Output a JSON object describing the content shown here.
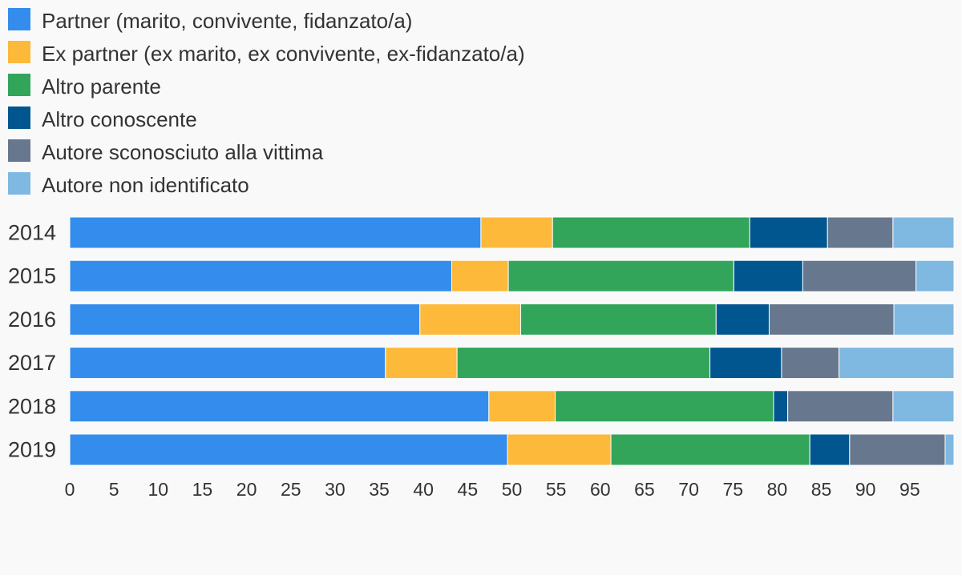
{
  "chart_data": {
    "type": "bar",
    "orientation": "horizontal",
    "stacked": true,
    "categories": [
      "2014",
      "2015",
      "2016",
      "2017",
      "2018",
      "2019"
    ],
    "series": [
      {
        "name": "Partner (marito, convivente, fidanzato/a)",
        "color": "#348ded",
        "values": [
          46.5,
          43.2,
          39.6,
          35.7,
          47.4,
          49.5
        ]
      },
      {
        "name": "Ex partner (ex marito, ex convivente, ex-fidanzato/a)",
        "color": "#fdb93a",
        "values": [
          8.1,
          6.4,
          11.4,
          8.1,
          7.5,
          11.7
        ]
      },
      {
        "name": "Altro parente",
        "color": "#32a55b",
        "values": [
          22.3,
          25.5,
          22.1,
          28.6,
          24.7,
          22.5
        ]
      },
      {
        "name": "Altro conoscente",
        "color": "#02568f",
        "values": [
          8.8,
          7.8,
          6.0,
          8.1,
          1.6,
          4.5
        ]
      },
      {
        "name": "Autore sconosciuto alla vittima",
        "color": "#67778d",
        "values": [
          7.4,
          12.8,
          14.1,
          6.5,
          11.9,
          10.8
        ]
      },
      {
        "name": "Autore non identificato",
        "color": "#7fb8e1",
        "values": [
          6.9,
          4.3,
          6.8,
          13.0,
          6.9,
          1.0
        ]
      }
    ],
    "xlim": [
      0,
      100
    ],
    "xticks": [
      "0",
      "5",
      "10",
      "15",
      "20",
      "25",
      "30",
      "35",
      "40",
      "45",
      "50",
      "55",
      "60",
      "65",
      "70",
      "75",
      "80",
      "85",
      "90",
      "95"
    ],
    "grid": false,
    "legend_position": "top-left"
  }
}
